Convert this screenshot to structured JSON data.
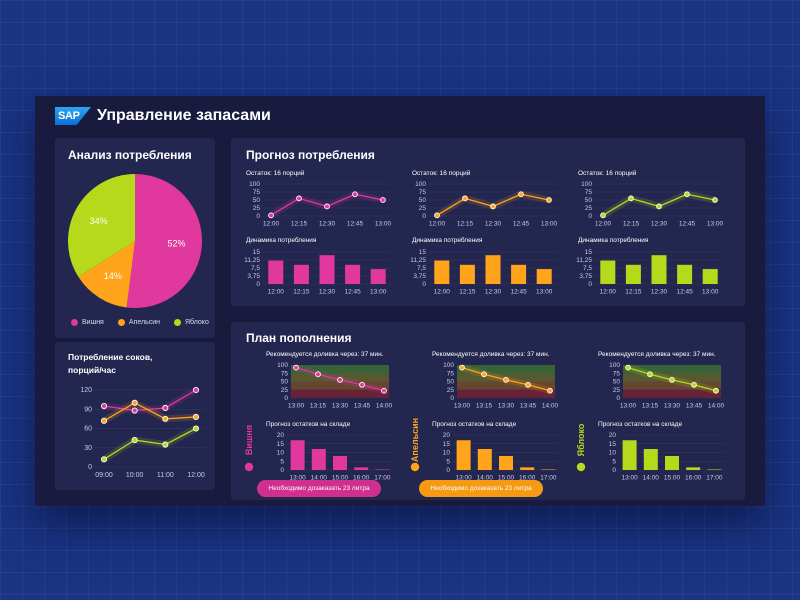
{
  "app": {
    "logo_text": "SAP",
    "title": "Управление запасами"
  },
  "colors": {
    "cherry": "#e0389c",
    "orange": "#ffa41b",
    "apple": "#b6d91c",
    "background": "#1a3383",
    "panel": "#191b3e",
    "card": "#23264f"
  },
  "consumption_analysis": {
    "title": "Анализ потребления",
    "legend": [
      {
        "name": "Вишня",
        "color": "#e0389c"
      },
      {
        "name": "Апельсин",
        "color": "#ffa41b"
      },
      {
        "name": "Яблоко",
        "color": "#b6d91c"
      }
    ]
  },
  "juice_consumption": {
    "title_line1": "Потребление соков,",
    "title_line2": "порций/час"
  },
  "forecast": {
    "title": "Прогноз потребления",
    "remaining_label": "Остаток: 16 порций",
    "dynamics_label": "Динамика потребления"
  },
  "replenishment": {
    "title": "План пополнения",
    "recommend_label": "Рекомендуется доливка через: 37 мин.",
    "stock_label": "Прогноз остатков на складе",
    "products": [
      {
        "name": "Вишня",
        "button": "Необходимо дозаказать 23 литра",
        "color": "#e0389c",
        "has_button": true
      },
      {
        "name": "Апельсин",
        "button": "Необходимо дозаказать 23 литра",
        "color": "#ffa41b",
        "has_button": true
      },
      {
        "name": "Яблоко",
        "button": "",
        "color": "#b6d91c",
        "has_button": false
      }
    ]
  },
  "chart_data": [
    {
      "id": "consumption-pie",
      "type": "pie",
      "labels": [
        "Вишня",
        "Апельсин",
        "Яблоко"
      ],
      "values": [
        52,
        14,
        34
      ],
      "value_labels": [
        "52%",
        "14%",
        "34%"
      ],
      "colors": [
        "#e0389c",
        "#ffa41b",
        "#b6d91c"
      ]
    },
    {
      "id": "juice-line",
      "type": "line",
      "x": [
        "09:00",
        "10:00",
        "11:00",
        "12:00"
      ],
      "yticks": [
        0,
        30,
        60,
        90,
        120
      ],
      "ylim": [
        0,
        120
      ],
      "series": [
        {
          "name": "Вишня",
          "color": "#e0389c",
          "values": [
            95,
            88,
            92,
            120
          ]
        },
        {
          "name": "Апельсин",
          "color": "#ffa41b",
          "values": [
            72,
            100,
            75,
            78
          ]
        },
        {
          "name": "Яблоко",
          "color": "#b6d91c",
          "values": [
            12,
            42,
            35,
            60
          ]
        }
      ]
    },
    {
      "id": "fc-line-cherry",
      "type": "line",
      "x": [
        "12:00",
        "12:15",
        "12:30",
        "12:45",
        "13:00"
      ],
      "yticks": [
        0,
        25,
        50,
        75,
        100
      ],
      "ylim": [
        0,
        100
      ],
      "series": [
        {
          "color": "#e0389c",
          "values": [
            2,
            55,
            30,
            68,
            50
          ]
        }
      ]
    },
    {
      "id": "fc-line-orange",
      "type": "line",
      "x": [
        "12:00",
        "12:15",
        "12:30",
        "12:45",
        "13:00"
      ],
      "yticks": [
        0,
        25,
        50,
        75,
        100
      ],
      "ylim": [
        0,
        100
      ],
      "series": [
        {
          "color": "#ffa41b",
          "values": [
            2,
            55,
            30,
            68,
            50
          ]
        }
      ]
    },
    {
      "id": "fc-line-apple",
      "type": "line",
      "x": [
        "12:00",
        "12:15",
        "12:30",
        "12:45",
        "13:00"
      ],
      "yticks": [
        0,
        25,
        50,
        75,
        100
      ],
      "ylim": [
        0,
        100
      ],
      "series": [
        {
          "color": "#b6d91c",
          "values": [
            2,
            55,
            30,
            68,
            50
          ]
        }
      ]
    },
    {
      "id": "fc-bar-cherry",
      "type": "bar",
      "categories": [
        "12:00",
        "12:15",
        "12:30",
        "12:45",
        "13:00"
      ],
      "yticks": [
        0,
        3.75,
        7.5,
        11.25,
        15
      ],
      "yticklabels": [
        "0",
        "3,75",
        "7,5",
        "11,25",
        "15"
      ],
      "ylim": [
        0,
        15
      ],
      "color": "#e0389c",
      "values": [
        11,
        9,
        13.5,
        9,
        7
      ]
    },
    {
      "id": "fc-bar-orange",
      "type": "bar",
      "categories": [
        "12:00",
        "12:15",
        "12:30",
        "12:45",
        "13:00"
      ],
      "yticks": [
        0,
        3.75,
        7.5,
        11.25,
        15
      ],
      "yticklabels": [
        "0",
        "3,75",
        "7,5",
        "11,25",
        "15"
      ],
      "ylim": [
        0,
        15
      ],
      "color": "#ffa41b",
      "values": [
        11,
        9,
        13.5,
        9,
        7
      ]
    },
    {
      "id": "fc-bar-apple",
      "type": "bar",
      "categories": [
        "12:00",
        "12:15",
        "12:30",
        "12:45",
        "13:00"
      ],
      "yticks": [
        0,
        3.75,
        7.5,
        11.25,
        15
      ],
      "yticklabels": [
        "0",
        "3,75",
        "7,5",
        "11,25",
        "15"
      ],
      "ylim": [
        0,
        15
      ],
      "color": "#b6d91c",
      "values": [
        11,
        9,
        13.5,
        9,
        7
      ]
    },
    {
      "id": "rp-line-cherry",
      "type": "line",
      "x": [
        "13:00",
        "13:15",
        "13:30",
        "13:45",
        "14:00"
      ],
      "yticks": [
        0,
        25,
        50,
        75,
        100
      ],
      "ylim": [
        0,
        100
      ],
      "zones": true,
      "series": [
        {
          "color": "#e0389c",
          "values": [
            92,
            72,
            55,
            40,
            22
          ]
        }
      ]
    },
    {
      "id": "rp-line-orange",
      "type": "line",
      "x": [
        "13:00",
        "13:15",
        "13:30",
        "13:45",
        "14:00"
      ],
      "yticks": [
        0,
        25,
        50,
        75,
        100
      ],
      "ylim": [
        0,
        100
      ],
      "zones": true,
      "series": [
        {
          "color": "#ffa41b",
          "values": [
            92,
            72,
            55,
            40,
            22
          ]
        }
      ]
    },
    {
      "id": "rp-line-apple",
      "type": "line",
      "x": [
        "13:00",
        "13:15",
        "13:30",
        "13:45",
        "14:00"
      ],
      "yticks": [
        0,
        25,
        50,
        75,
        100
      ],
      "ylim": [
        0,
        100
      ],
      "zones": true,
      "series": [
        {
          "color": "#b6d91c",
          "values": [
            92,
            72,
            55,
            40,
            22
          ]
        }
      ]
    },
    {
      "id": "rp-bar-cherry",
      "type": "bar",
      "categories": [
        "13:00",
        "14:00",
        "15:00",
        "16:00",
        "17:00"
      ],
      "yticks": [
        0,
        5,
        10,
        15,
        20
      ],
      "ylim": [
        0,
        20
      ],
      "color": "#e0389c",
      "values": [
        17,
        12,
        8,
        1.5,
        0.3
      ]
    },
    {
      "id": "rp-bar-orange",
      "type": "bar",
      "categories": [
        "13:00",
        "14:00",
        "15:00",
        "16:00",
        "17:00"
      ],
      "yticks": [
        0,
        5,
        10,
        15,
        20
      ],
      "ylim": [
        0,
        20
      ],
      "color": "#ffa41b",
      "values": [
        17,
        12,
        8,
        1.5,
        0.3
      ]
    },
    {
      "id": "rp-bar-apple",
      "type": "bar",
      "categories": [
        "13:00",
        "14:00",
        "15:00",
        "16:00",
        "17:00"
      ],
      "yticks": [
        0,
        5,
        10,
        15,
        20
      ],
      "ylim": [
        0,
        20
      ],
      "color": "#b6d91c",
      "values": [
        17,
        12,
        8,
        1.5,
        0.3
      ]
    }
  ]
}
